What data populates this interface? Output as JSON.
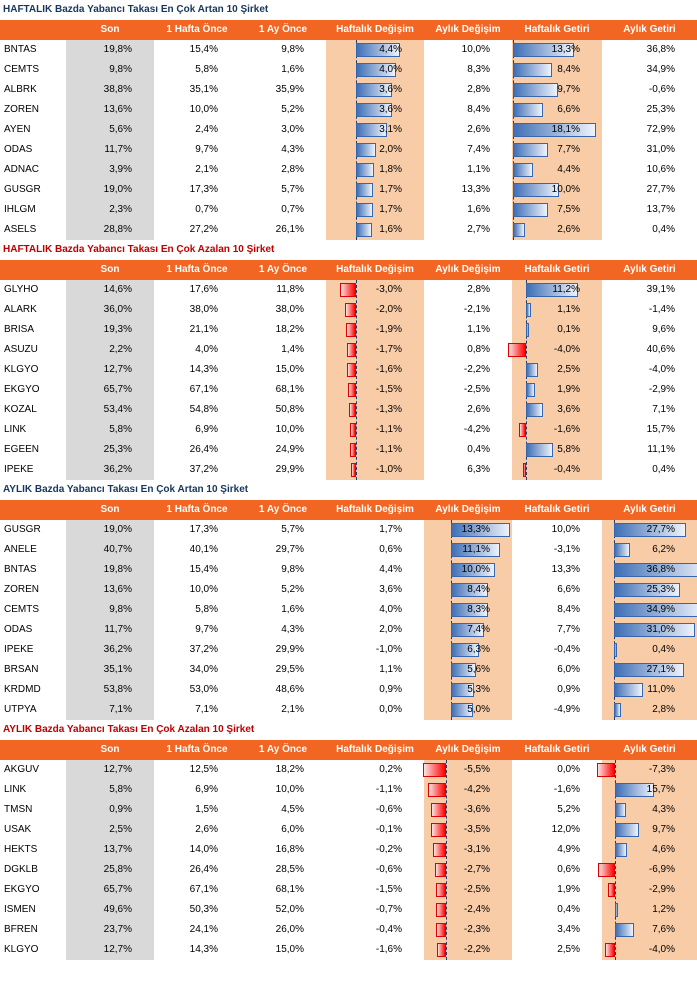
{
  "columns": [
    "",
    "Son",
    "1 Hafta Önce",
    "1 Ay Önce",
    "Haftalık Değişim",
    "Aylık Değişim",
    "Haftalık Getiri",
    "Aylık Getiri"
  ],
  "sections": [
    {
      "title": "HAFTALIK Bazda Yabancı Takası En Çok Artan 10 Şirket",
      "rows": [
        [
          "BNTAS",
          "19,8%",
          "15,4%",
          "9,8%",
          "4,4%",
          "10,0%",
          "13,3%",
          "36,8%"
        ],
        [
          "CEMTS",
          "9,8%",
          "5,8%",
          "1,6%",
          "4,0%",
          "8,3%",
          "8,4%",
          "34,9%"
        ],
        [
          "ALBRK",
          "38,8%",
          "35,1%",
          "35,9%",
          "3,6%",
          "2,8%",
          "9,7%",
          "-0,6%"
        ],
        [
          "ZOREN",
          "13,6%",
          "10,0%",
          "5,2%",
          "3,6%",
          "8,4%",
          "6,6%",
          "25,3%"
        ],
        [
          "AYEN",
          "5,6%",
          "2,4%",
          "3,0%",
          "3,1%",
          "2,6%",
          "18,1%",
          "72,9%"
        ],
        [
          "ODAS",
          "11,7%",
          "9,7%",
          "4,3%",
          "2,0%",
          "7,4%",
          "7,7%",
          "31,0%"
        ],
        [
          "ADNAC",
          "3,9%",
          "2,1%",
          "2,8%",
          "1,8%",
          "1,1%",
          "4,4%",
          "10,6%"
        ],
        [
          "GUSGR",
          "19,0%",
          "17,3%",
          "5,7%",
          "1,7%",
          "13,3%",
          "10,0%",
          "27,7%"
        ],
        [
          "IHLGM",
          "2,3%",
          "0,7%",
          "0,7%",
          "1,7%",
          "1,6%",
          "7,5%",
          "13,7%"
        ],
        [
          "ASELS",
          "28,8%",
          "27,2%",
          "26,1%",
          "1,6%",
          "2,7%",
          "2,6%",
          "0,4%"
        ]
      ]
    },
    {
      "title": "HAFTALIK Bazda Yabancı Takası En Çok Azalan 10 Şirket",
      "rows": [
        [
          "GLYHO",
          "14,6%",
          "17,6%",
          "11,8%",
          "-3,0%",
          "2,8%",
          "11,2%",
          "39,1%"
        ],
        [
          "ALARK",
          "36,0%",
          "38,0%",
          "38,0%",
          "-2,0%",
          "-2,1%",
          "1,1%",
          "-1,4%"
        ],
        [
          "BRISA",
          "19,3%",
          "21,1%",
          "18,2%",
          "-1,9%",
          "1,1%",
          "0,1%",
          "9,6%"
        ],
        [
          "ASUZU",
          "2,2%",
          "4,0%",
          "1,4%",
          "-1,7%",
          "0,8%",
          "-4,0%",
          "40,6%"
        ],
        [
          "KLGYO",
          "12,7%",
          "14,3%",
          "15,0%",
          "-1,6%",
          "-2,2%",
          "2,5%",
          "-4,0%"
        ],
        [
          "EKGYO",
          "65,7%",
          "67,1%",
          "68,1%",
          "-1,5%",
          "-2,5%",
          "1,9%",
          "-2,9%"
        ],
        [
          "KOZAL",
          "53,4%",
          "54,8%",
          "50,8%",
          "-1,3%",
          "2,6%",
          "3,6%",
          "7,1%"
        ],
        [
          "LINK",
          "5,8%",
          "6,9%",
          "10,0%",
          "-1,1%",
          "-4,2%",
          "-1,6%",
          "15,7%"
        ],
        [
          "EGEEN",
          "25,3%",
          "26,4%",
          "24,9%",
          "-1,1%",
          "0,4%",
          "5,8%",
          "11,1%"
        ],
        [
          "IPEKE",
          "36,2%",
          "37,2%",
          "29,9%",
          "-1,0%",
          "6,3%",
          "-0,4%",
          "0,4%"
        ]
      ]
    },
    {
      "title": "AYLIK Bazda Yabancı Takası En Çok Artan 10 Şirket",
      "rows": [
        [
          "GUSGR",
          "19,0%",
          "17,3%",
          "5,7%",
          "1,7%",
          "13,3%",
          "10,0%",
          "27,7%"
        ],
        [
          "ANELE",
          "40,7%",
          "40,1%",
          "29,7%",
          "0,6%",
          "11,1%",
          "-3,1%",
          "6,2%"
        ],
        [
          "BNTAS",
          "19,8%",
          "15,4%",
          "9,8%",
          "4,4%",
          "10,0%",
          "13,3%",
          "36,8%"
        ],
        [
          "ZOREN",
          "13,6%",
          "10,0%",
          "5,2%",
          "3,6%",
          "8,4%",
          "6,6%",
          "25,3%"
        ],
        [
          "CEMTS",
          "9,8%",
          "5,8%",
          "1,6%",
          "4,0%",
          "8,3%",
          "8,4%",
          "34,9%"
        ],
        [
          "ODAS",
          "11,7%",
          "9,7%",
          "4,3%",
          "2,0%",
          "7,4%",
          "7,7%",
          "31,0%"
        ],
        [
          "IPEKE",
          "36,2%",
          "37,2%",
          "29,9%",
          "-1,0%",
          "6,3%",
          "-0,4%",
          "0,4%"
        ],
        [
          "BRSAN",
          "35,1%",
          "34,0%",
          "29,5%",
          "1,1%",
          "5,6%",
          "6,0%",
          "27,1%"
        ],
        [
          "KRDMD",
          "53,8%",
          "53,0%",
          "48,6%",
          "0,9%",
          "5,3%",
          "0,9%",
          "11,0%"
        ],
        [
          "UTPYA",
          "7,1%",
          "7,1%",
          "2,1%",
          "0,0%",
          "5,0%",
          "-4,9%",
          "2,8%"
        ]
      ]
    },
    {
      "title": "AYLIK Bazda Yabancı Takası En Çok Azalan 10 Şirket",
      "rows": [
        [
          "AKGUV",
          "12,7%",
          "12,5%",
          "18,2%",
          "0,2%",
          "-5,5%",
          "0,0%",
          "-7,3%"
        ],
        [
          "LINK",
          "5,8%",
          "6,9%",
          "10,0%",
          "-1,1%",
          "-4,2%",
          "-1,6%",
          "15,7%"
        ],
        [
          "TMSN",
          "0,9%",
          "1,5%",
          "4,5%",
          "-0,6%",
          "-3,6%",
          "5,2%",
          "4,3%"
        ],
        [
          "USAK",
          "2,5%",
          "2,6%",
          "6,0%",
          "-0,1%",
          "-3,5%",
          "12,0%",
          "9,7%"
        ],
        [
          "HEKTS",
          "13,7%",
          "14,0%",
          "16,8%",
          "-0,2%",
          "-3,1%",
          "4,9%",
          "4,6%"
        ],
        [
          "DGKLB",
          "25,8%",
          "26,4%",
          "28,5%",
          "-0,6%",
          "-2,7%",
          "0,6%",
          "-6,9%"
        ],
        [
          "EKGYO",
          "65,7%",
          "67,1%",
          "68,1%",
          "-1,5%",
          "-2,5%",
          "1,9%",
          "-2,9%"
        ],
        [
          "ISMEN",
          "49,6%",
          "50,3%",
          "52,0%",
          "-0,7%",
          "-2,4%",
          "0,4%",
          "1,2%"
        ],
        [
          "BFREN",
          "23,7%",
          "24,1%",
          "26,0%",
          "-0,4%",
          "-2,3%",
          "3,4%",
          "7,6%"
        ],
        [
          "KLGYO",
          "12,7%",
          "14,3%",
          "15,0%",
          "-1,6%",
          "-2,2%",
          "2,5%",
          "-4,0%"
        ]
      ]
    }
  ],
  "colors": {
    "header_bg": "#f26522",
    "son_bg": "#d9d9d9",
    "highlight_bg": "#f9cca8",
    "bar_pos": "#3f6fb5",
    "bar_neg": "#ff0000"
  }
}
